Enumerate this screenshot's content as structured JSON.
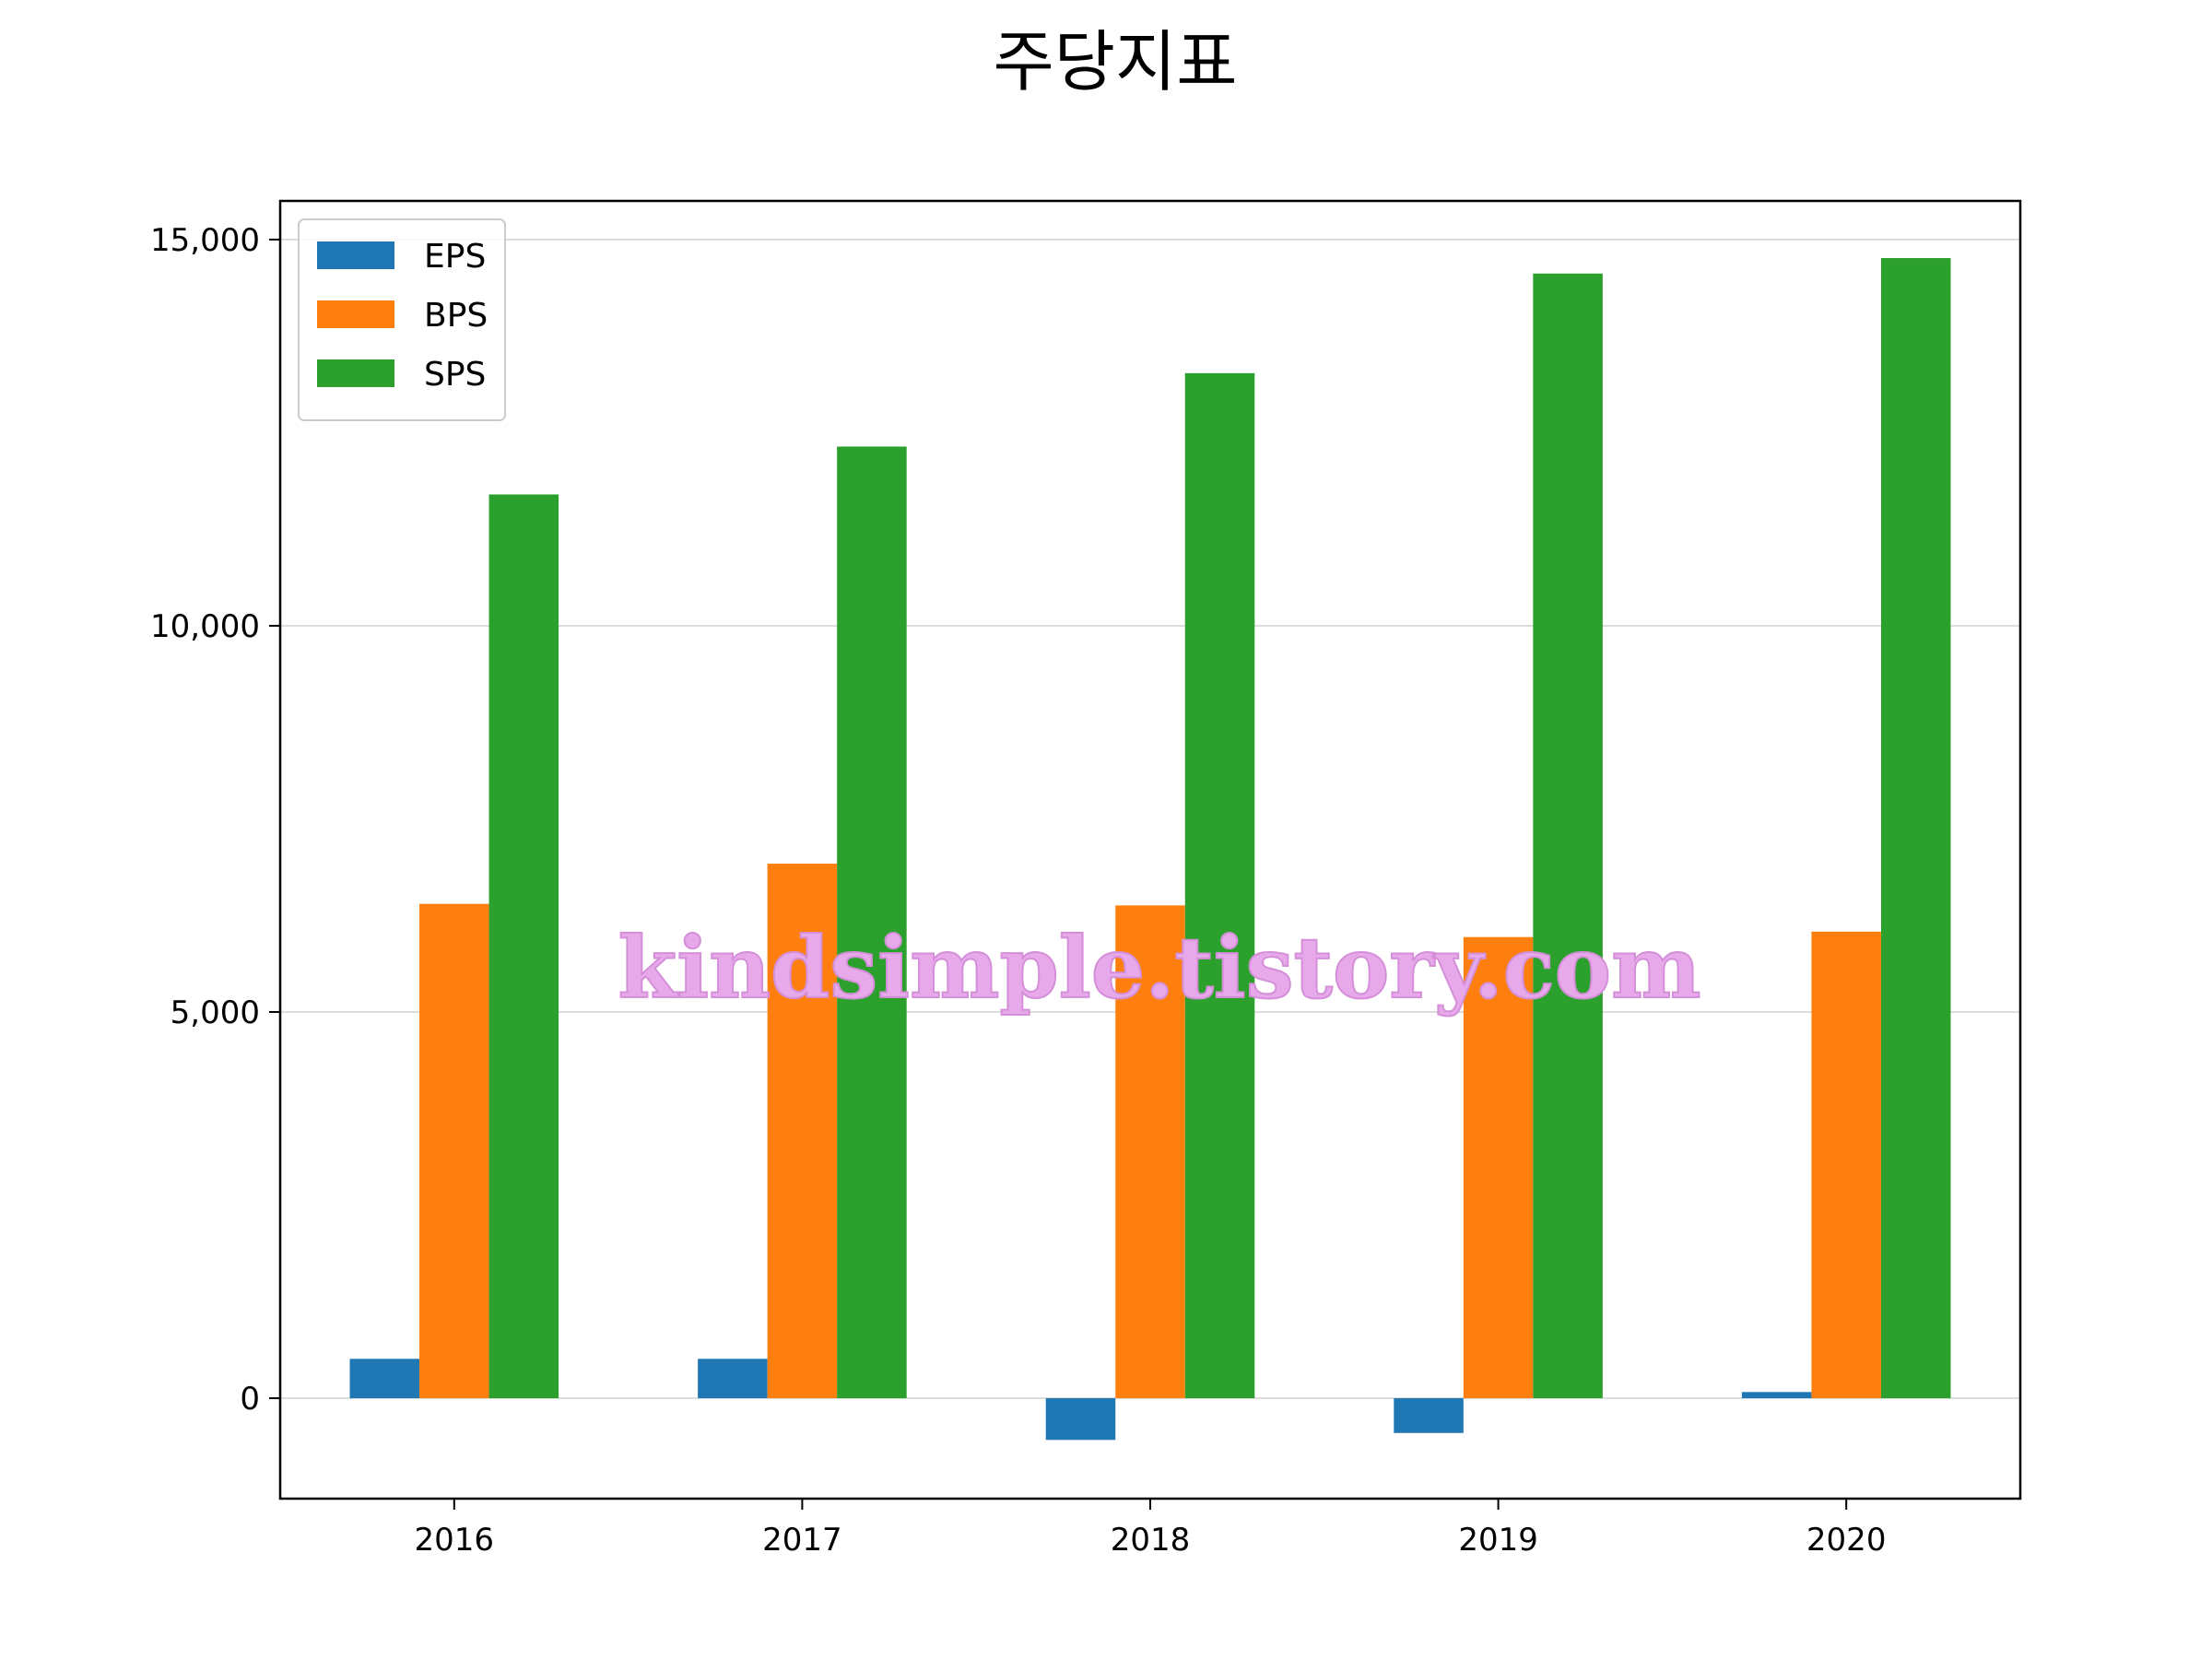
{
  "chart_data": {
    "type": "bar",
    "title": "주당지표",
    "categories": [
      "2016",
      "2017",
      "2018",
      "2019",
      "2020"
    ],
    "series": [
      {
        "name": "EPS",
        "color": "#1f77b4",
        "values": [
          510,
          510,
          -540,
          -450,
          80
        ]
      },
      {
        "name": "BPS",
        "color": "#ff7f0e",
        "values": [
          6400,
          6920,
          6380,
          5970,
          6040
        ]
      },
      {
        "name": "SPS",
        "color": "#2ca02c",
        "values": [
          11700,
          12320,
          13270,
          14560,
          14760
        ]
      }
    ],
    "xlabel": "",
    "ylabel": "",
    "ylim": [
      -1300,
      15500
    ],
    "yticks": [
      0,
      5000,
      10000,
      15000
    ],
    "ytick_labels": [
      "0",
      "5,000",
      "10,000",
      "15,000"
    ],
    "grid": "horizontal",
    "legend_position": "top-left"
  },
  "watermark": "kindsimple.tistory.com"
}
